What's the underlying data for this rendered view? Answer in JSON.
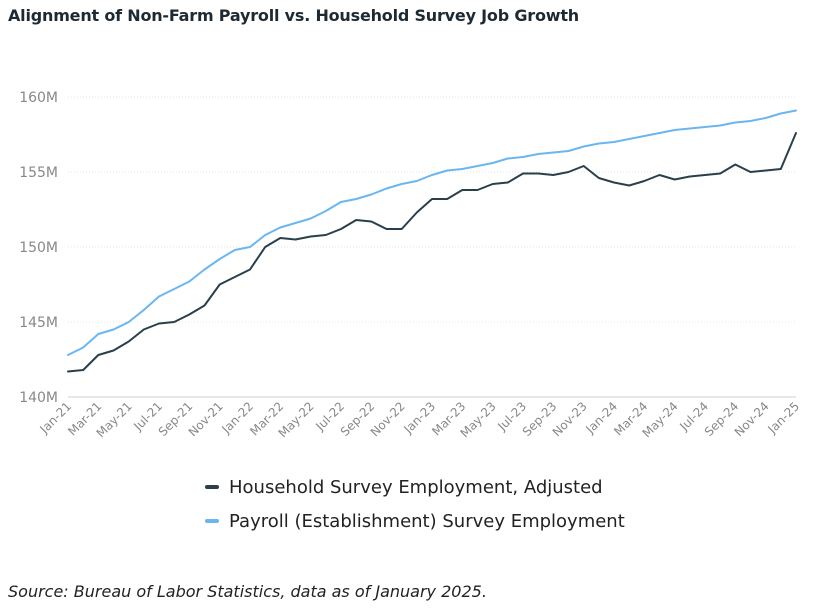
{
  "title": "Alignment of Non-Farm Payroll vs. Household Survey Job Growth",
  "source": "Source: Bureau of Labor Statistics, data as of January 2025.",
  "chart_data": {
    "type": "line",
    "ylim": [
      140,
      160
    ],
    "y_ticks": [
      {
        "value": 140,
        "label": "140M"
      },
      {
        "value": 145,
        "label": "145M"
      },
      {
        "value": 150,
        "label": "150M"
      },
      {
        "value": 155,
        "label": "155M"
      },
      {
        "value": 160,
        "label": "160M"
      }
    ],
    "x_tick_labels": [
      "Jan-21",
      "Mar-21",
      "May-21",
      "Jul-21",
      "Sep-21",
      "Nov-21",
      "Jan-22",
      "Mar-22",
      "May-22",
      "Jul-22",
      "Sep-22",
      "Nov-22",
      "Jan-23",
      "Mar-23",
      "May-23",
      "Jul-23",
      "Sep-23",
      "Nov-23",
      "Jan-24",
      "Mar-24",
      "May-24",
      "Jul-24",
      "Sep-24",
      "Nov-24",
      "Jan-25"
    ],
    "x": [
      "2021-01",
      "2021-02",
      "2021-03",
      "2021-04",
      "2021-05",
      "2021-06",
      "2021-07",
      "2021-08",
      "2021-09",
      "2021-10",
      "2021-11",
      "2021-12",
      "2022-01",
      "2022-02",
      "2022-03",
      "2022-04",
      "2022-05",
      "2022-06",
      "2022-07",
      "2022-08",
      "2022-09",
      "2022-10",
      "2022-11",
      "2022-12",
      "2023-01",
      "2023-02",
      "2023-03",
      "2023-04",
      "2023-05",
      "2023-06",
      "2023-07",
      "2023-08",
      "2023-09",
      "2023-10",
      "2023-11",
      "2023-12",
      "2024-01",
      "2024-02",
      "2024-03",
      "2024-04",
      "2024-05",
      "2024-06",
      "2024-07",
      "2024-08",
      "2024-09",
      "2024-10",
      "2024-11",
      "2024-12",
      "2025-01"
    ],
    "grid": true,
    "legend_position": "bottom",
    "series": [
      {
        "name": "Household Survey Employment, Adjusted",
        "color": "#2a3f4a",
        "values": [
          141.7,
          141.8,
          142.8,
          143.1,
          143.7,
          144.5,
          144.9,
          145.0,
          145.5,
          146.1,
          147.5,
          148.0,
          148.5,
          150.0,
          150.6,
          150.5,
          150.7,
          150.8,
          151.2,
          151.8,
          151.7,
          151.2,
          151.2,
          152.3,
          153.2,
          153.2,
          153.8,
          153.8,
          154.2,
          154.3,
          154.9,
          154.9,
          154.8,
          155.0,
          155.4,
          154.6,
          154.3,
          154.1,
          154.4,
          154.8,
          154.5,
          154.7,
          154.8,
          154.9,
          155.5,
          155.0,
          155.1,
          155.2,
          157.6
        ]
      },
      {
        "name": "Payroll (Establishment) Survey Employment",
        "color": "#6ab6f0",
        "values": [
          142.8,
          143.3,
          144.2,
          144.5,
          145.0,
          145.8,
          146.7,
          147.2,
          147.7,
          148.5,
          149.2,
          149.8,
          150.0,
          150.8,
          151.3,
          151.6,
          151.9,
          152.4,
          153.0,
          153.2,
          153.5,
          153.9,
          154.2,
          154.4,
          154.8,
          155.1,
          155.2,
          155.4,
          155.6,
          155.9,
          156.0,
          156.2,
          156.3,
          156.4,
          156.7,
          156.9,
          157.0,
          157.2,
          157.4,
          157.6,
          157.8,
          157.9,
          158.0,
          158.1,
          158.3,
          158.4,
          158.6,
          158.9,
          159.1
        ]
      }
    ]
  }
}
